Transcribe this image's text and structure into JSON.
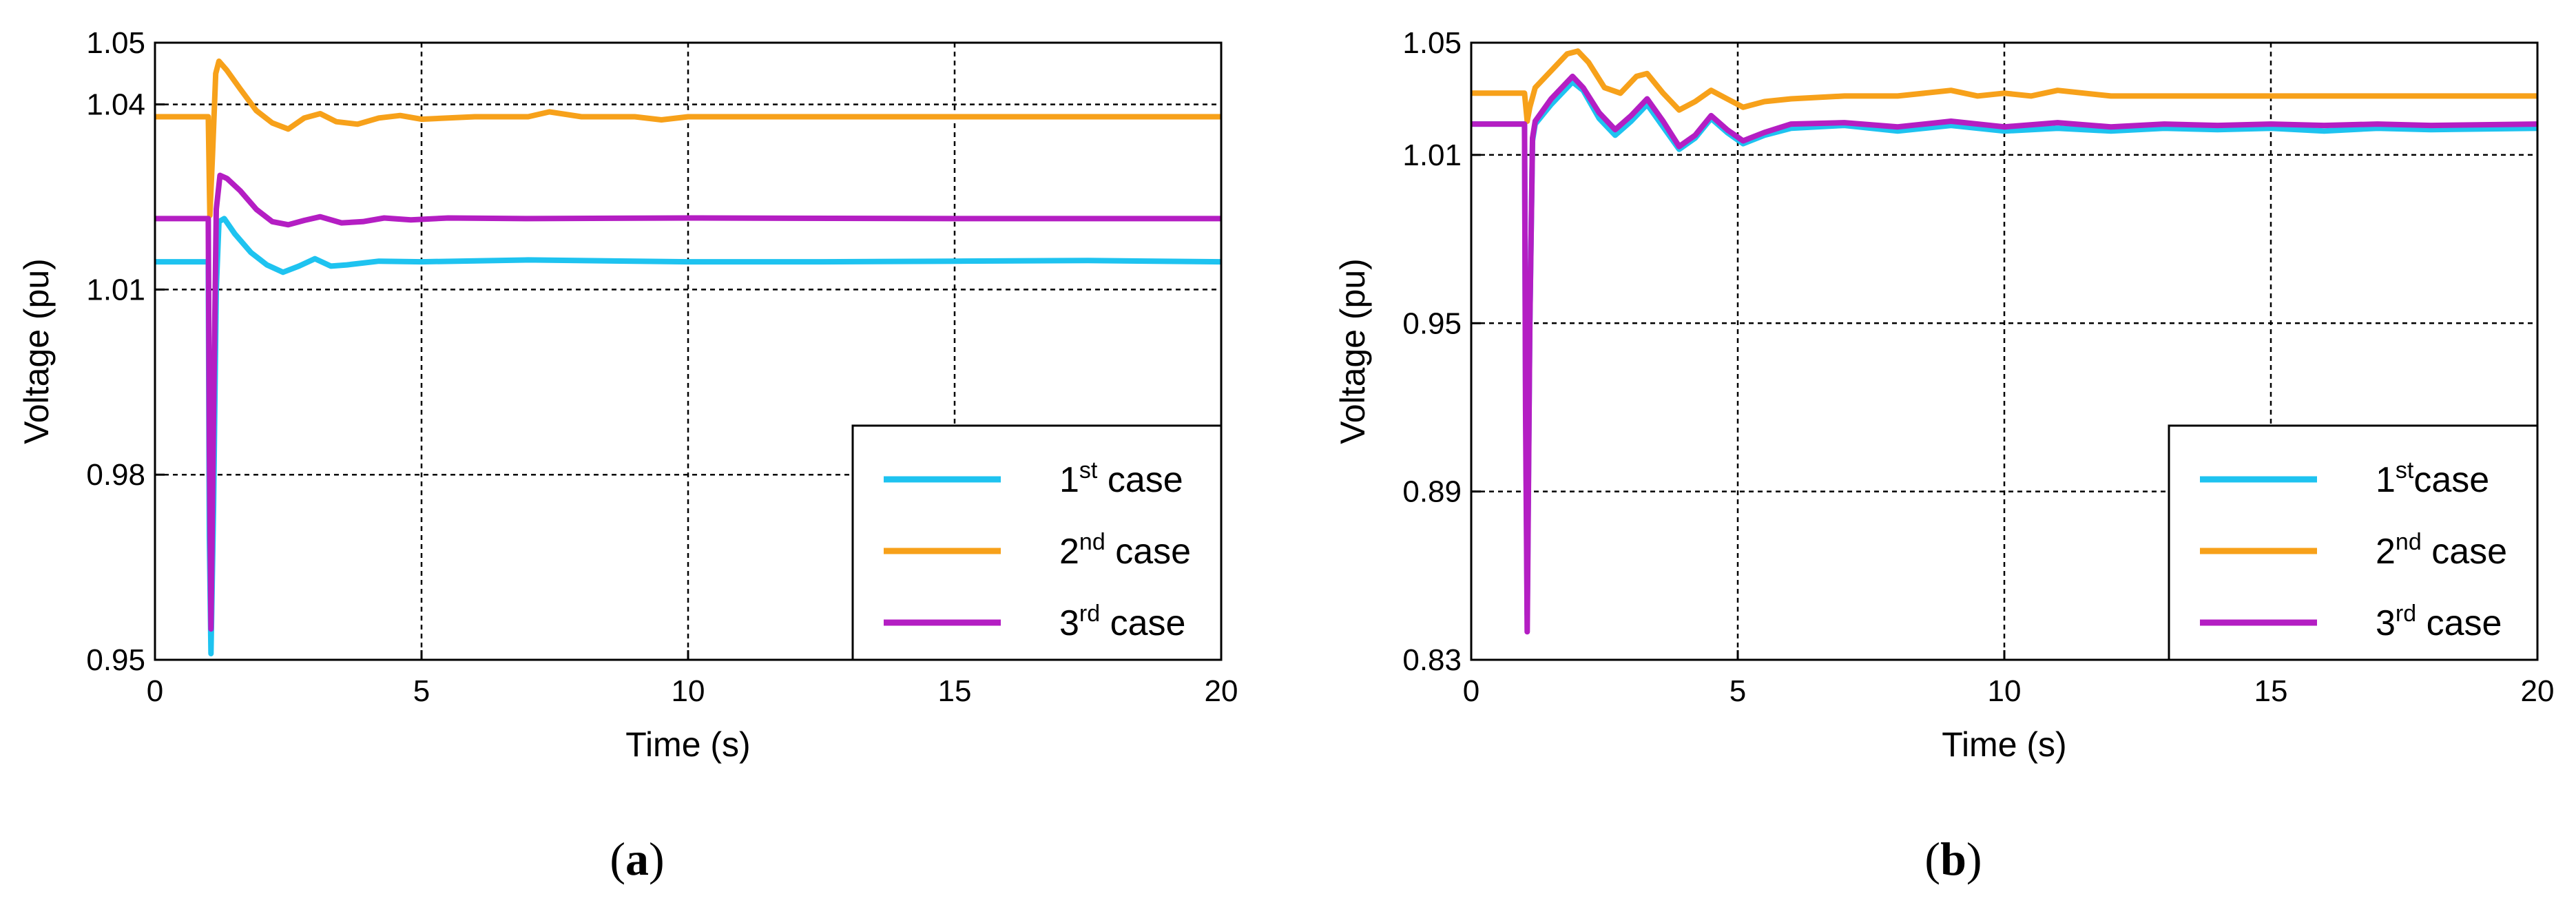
{
  "chart_data": [
    {
      "type": "line",
      "panel": "a",
      "caption": {
        "open": "(",
        "letter": "a",
        "close": ")"
      },
      "xlabel": "Time (s)",
      "ylabel": "Voltage (pu)",
      "xlim": [
        0,
        20
      ],
      "ylim": [
        0.95,
        1.05
      ],
      "xticks": [
        0,
        5,
        10,
        15,
        20
      ],
      "yticks": [
        0.95,
        0.98,
        1.01,
        1.04,
        1.05
      ],
      "ytick_labels": [
        "0.95",
        "0.98",
        "1.01",
        "1.04",
        "1.05"
      ],
      "grid": true,
      "legend_position": "bottom-right",
      "series": [
        {
          "name": "1st case",
          "base": "1",
          "sup": "st",
          "rest": " case",
          "color": "#1ec3f0",
          "points": [
            [
              0,
              1.0145
            ],
            [
              1.0,
              1.0145
            ],
            [
              1.02,
              0.97
            ],
            [
              1.05,
              0.951
            ],
            [
              1.1,
              0.975
            ],
            [
              1.15,
              1.01
            ],
            [
              1.2,
              1.021
            ],
            [
              1.3,
              1.0215
            ],
            [
              1.5,
              1.019
            ],
            [
              1.8,
              1.016
            ],
            [
              2.1,
              1.014
            ],
            [
              2.4,
              1.0128
            ],
            [
              2.7,
              1.0138
            ],
            [
              3.0,
              1.015
            ],
            [
              3.3,
              1.0138
            ],
            [
              3.6,
              1.014
            ],
            [
              4.2,
              1.0146
            ],
            [
              5,
              1.0145
            ],
            [
              7,
              1.0148
            ],
            [
              10,
              1.0145
            ],
            [
              12.5,
              1.0145
            ],
            [
              15,
              1.0146
            ],
            [
              17.5,
              1.0147
            ],
            [
              20,
              1.0145
            ]
          ]
        },
        {
          "name": "2nd case",
          "base": "2",
          "sup": "nd",
          "rest": " case",
          "color": "#f7a11a",
          "points": [
            [
              0,
              1.038
            ],
            [
              1.0,
              1.038
            ],
            [
              1.03,
              1.022
            ],
            [
              1.08,
              1.032
            ],
            [
              1.14,
              1.045
            ],
            [
              1.2,
              1.047
            ],
            [
              1.35,
              1.0455
            ],
            [
              1.6,
              1.0425
            ],
            [
              1.9,
              1.039
            ],
            [
              2.2,
              1.037
            ],
            [
              2.5,
              1.036
            ],
            [
              2.8,
              1.0378
            ],
            [
              3.1,
              1.0385
            ],
            [
              3.4,
              1.0372
            ],
            [
              3.8,
              1.0368
            ],
            [
              4.2,
              1.0378
            ],
            [
              4.6,
              1.0382
            ],
            [
              5.0,
              1.0376
            ],
            [
              6,
              1.038
            ],
            [
              7,
              1.038
            ],
            [
              7.4,
              1.0388
            ],
            [
              8,
              1.038
            ],
            [
              9,
              1.038
            ],
            [
              9.5,
              1.0375
            ],
            [
              10,
              1.038
            ],
            [
              15,
              1.038
            ],
            [
              20,
              1.038
            ]
          ]
        },
        {
          "name": "3rd case",
          "base": "3",
          "sup": "rd",
          "rest": " case",
          "color": "#b41ec3",
          "points": [
            [
              0,
              1.0215
            ],
            [
              1.0,
              1.0215
            ],
            [
              1.02,
              0.985
            ],
            [
              1.05,
              0.955
            ],
            [
              1.1,
              0.99
            ],
            [
              1.15,
              1.023
            ],
            [
              1.22,
              1.0285
            ],
            [
              1.35,
              1.028
            ],
            [
              1.6,
              1.026
            ],
            [
              1.9,
              1.023
            ],
            [
              2.2,
              1.021
            ],
            [
              2.5,
              1.0205
            ],
            [
              2.8,
              1.0212
            ],
            [
              3.1,
              1.0218
            ],
            [
              3.5,
              1.0208
            ],
            [
              3.9,
              1.021
            ],
            [
              4.3,
              1.0216
            ],
            [
              4.8,
              1.0213
            ],
            [
              5.5,
              1.0216
            ],
            [
              7,
              1.0215
            ],
            [
              10,
              1.0216
            ],
            [
              15,
              1.0215
            ],
            [
              20,
              1.0215
            ]
          ]
        }
      ]
    },
    {
      "type": "line",
      "panel": "b",
      "caption": {
        "open": "(",
        "letter": "b",
        "close": ")"
      },
      "xlabel": "Time (s)",
      "ylabel": "Voltage (pu)",
      "xlim": [
        0,
        20
      ],
      "ylim": [
        0.83,
        1.05
      ],
      "xticks": [
        0,
        5,
        10,
        15,
        20
      ],
      "yticks": [
        0.83,
        0.89,
        0.95,
        1.01,
        1.05
      ],
      "ytick_labels": [
        "0.83",
        "0.89",
        "0.95",
        "1.01",
        "1.05"
      ],
      "grid": true,
      "legend_position": "bottom-right",
      "series": [
        {
          "name": "1stcase",
          "base": "1",
          "sup": "st",
          "rest": "case",
          "color": "#1ec3f0",
          "points": [
            [
              0,
              1.021
            ],
            [
              1.0,
              1.021
            ],
            [
              1.02,
              0.93
            ],
            [
              1.05,
              0.846
            ],
            [
              1.1,
              0.95
            ],
            [
              1.15,
              1.015
            ],
            [
              1.2,
              1.021
            ],
            [
              1.5,
              1.028
            ],
            [
              1.9,
              1.036
            ],
            [
              2.1,
              1.033
            ],
            [
              2.4,
              1.023
            ],
            [
              2.7,
              1.017
            ],
            [
              3.0,
              1.022
            ],
            [
              3.3,
              1.028
            ],
            [
              3.6,
              1.02
            ],
            [
              3.9,
              1.012
            ],
            [
              4.2,
              1.016
            ],
            [
              4.5,
              1.023
            ],
            [
              4.8,
              1.018
            ],
            [
              5.1,
              1.014
            ],
            [
              5.5,
              1.017
            ],
            [
              6,
              1.0195
            ],
            [
              7,
              1.0205
            ],
            [
              8,
              1.0185
            ],
            [
              9,
              1.0205
            ],
            [
              10,
              1.0185
            ],
            [
              11,
              1.0195
            ],
            [
              12,
              1.0185
            ],
            [
              13,
              1.0195
            ],
            [
              14,
              1.019
            ],
            [
              15,
              1.0195
            ],
            [
              16,
              1.0185
            ],
            [
              17,
              1.0195
            ],
            [
              18,
              1.019
            ],
            [
              20,
              1.0195
            ]
          ]
        },
        {
          "name": "2nd case",
          "base": "2",
          "sup": "nd",
          "rest": " case",
          "color": "#f7a11a",
          "points": [
            [
              0,
              1.032
            ],
            [
              1.0,
              1.032
            ],
            [
              1.05,
              1.022
            ],
            [
              1.1,
              1.027
            ],
            [
              1.2,
              1.034
            ],
            [
              1.5,
              1.04
            ],
            [
              1.8,
              1.046
            ],
            [
              2.0,
              1.047
            ],
            [
              2.2,
              1.043
            ],
            [
              2.5,
              1.034
            ],
            [
              2.8,
              1.032
            ],
            [
              3.1,
              1.038
            ],
            [
              3.3,
              1.039
            ],
            [
              3.6,
              1.032
            ],
            [
              3.9,
              1.026
            ],
            [
              4.2,
              1.029
            ],
            [
              4.5,
              1.033
            ],
            [
              4.8,
              1.03
            ],
            [
              5.1,
              1.027
            ],
            [
              5.5,
              1.029
            ],
            [
              6,
              1.03
            ],
            [
              7,
              1.031
            ],
            [
              8,
              1.031
            ],
            [
              9,
              1.033
            ],
            [
              9.5,
              1.031
            ],
            [
              10,
              1.032
            ],
            [
              10.5,
              1.031
            ],
            [
              11,
              1.033
            ],
            [
              12,
              1.031
            ],
            [
              13,
              1.031
            ],
            [
              15,
              1.031
            ],
            [
              17,
              1.031
            ],
            [
              20,
              1.031
            ]
          ]
        },
        {
          "name": "3rd case",
          "base": "3",
          "sup": "rd",
          "rest": " case",
          "color": "#b41ec3",
          "points": [
            [
              0,
              1.021
            ],
            [
              1.0,
              1.021
            ],
            [
              1.02,
              0.92
            ],
            [
              1.05,
              0.84
            ],
            [
              1.1,
              0.95
            ],
            [
              1.15,
              1.016
            ],
            [
              1.2,
              1.022
            ],
            [
              1.5,
              1.03
            ],
            [
              1.9,
              1.038
            ],
            [
              2.1,
              1.034
            ],
            [
              2.4,
              1.025
            ],
            [
              2.7,
              1.019
            ],
            [
              3.0,
              1.024
            ],
            [
              3.3,
              1.03
            ],
            [
              3.6,
              1.022
            ],
            [
              3.9,
              1.013
            ],
            [
              4.2,
              1.017
            ],
            [
              4.5,
              1.024
            ],
            [
              4.8,
              1.019
            ],
            [
              5.1,
              1.015
            ],
            [
              5.5,
              1.018
            ],
            [
              6,
              1.021
            ],
            [
              7,
              1.0215
            ],
            [
              8,
              1.02
            ],
            [
              9,
              1.022
            ],
            [
              10,
              1.02
            ],
            [
              11,
              1.0215
            ],
            [
              12,
              1.02
            ],
            [
              13,
              1.021
            ],
            [
              14,
              1.0205
            ],
            [
              15,
              1.021
            ],
            [
              16,
              1.0205
            ],
            [
              17,
              1.021
            ],
            [
              18,
              1.0205
            ],
            [
              20,
              1.021
            ]
          ]
        }
      ]
    }
  ]
}
